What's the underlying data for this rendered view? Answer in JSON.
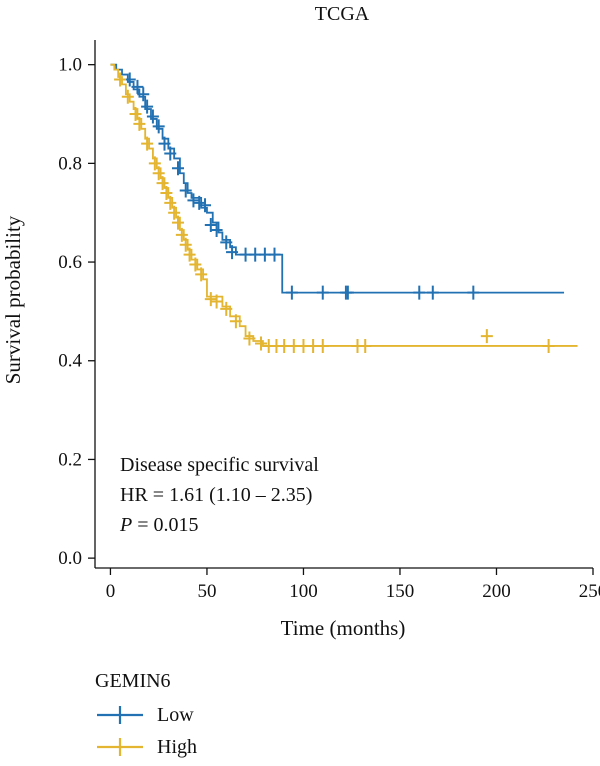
{
  "chart_data": {
    "type": "line",
    "title": "TCGA",
    "xlabel": "Time (months)",
    "ylabel": "Survival probability",
    "xlim": [
      -8,
      250
    ],
    "ylim": [
      -0.02,
      1.05
    ],
    "x_ticks": [
      0,
      50,
      100,
      150,
      200,
      250
    ],
    "y_ticks": [
      0.0,
      0.2,
      0.4,
      0.6,
      0.8,
      1.0
    ],
    "x_tick_labels": [
      "0",
      "50",
      "100",
      "150",
      "200",
      "250"
    ],
    "y_tick_labels": [
      "0.0",
      "0.2",
      "0.4",
      "0.6",
      "0.8",
      "1.0"
    ],
    "annotations": {
      "line1": "Disease specific survival",
      "line2": "HR = 1.61 (1.10 – 2.35)",
      "p_label": "P",
      "p_value": " = 0.015"
    },
    "legend": {
      "title": "GEMIN6",
      "position": "bottom-left"
    },
    "grid": false,
    "series": [
      {
        "name": "Low",
        "color": "#2271b2",
        "steps": [
          [
            0,
            1.0
          ],
          [
            3,
            0.99
          ],
          [
            6,
            0.98
          ],
          [
            9,
            0.965
          ],
          [
            12,
            0.95
          ],
          [
            15,
            0.935
          ],
          [
            18,
            0.91
          ],
          [
            21,
            0.89
          ],
          [
            24,
            0.87
          ],
          [
            27,
            0.85
          ],
          [
            30,
            0.83
          ],
          [
            33,
            0.81
          ],
          [
            36,
            0.78
          ],
          [
            38,
            0.76
          ],
          [
            40,
            0.74
          ],
          [
            42,
            0.73
          ],
          [
            47,
            0.71
          ],
          [
            50,
            0.7
          ],
          [
            53,
            0.68
          ],
          [
            56,
            0.66
          ],
          [
            58,
            0.645
          ],
          [
            62,
            0.63
          ],
          [
            65,
            0.615
          ],
          [
            89,
            0.538
          ],
          [
            235,
            0.538
          ]
        ],
        "censors": [
          [
            10,
            0.97
          ],
          [
            14,
            0.955
          ],
          [
            17,
            0.94
          ],
          [
            19,
            0.915
          ],
          [
            22,
            0.895
          ],
          [
            25,
            0.875
          ],
          [
            28,
            0.84
          ],
          [
            31,
            0.82
          ],
          [
            35,
            0.79
          ],
          [
            39,
            0.745
          ],
          [
            43,
            0.725
          ],
          [
            46,
            0.72
          ],
          [
            49,
            0.715
          ],
          [
            52,
            0.675
          ],
          [
            55,
            0.665
          ],
          [
            60,
            0.64
          ],
          [
            63,
            0.62
          ],
          [
            70,
            0.615
          ],
          [
            75,
            0.615
          ],
          [
            80,
            0.615
          ],
          [
            85,
            0.615
          ],
          [
            94,
            0.538
          ],
          [
            110,
            0.538
          ],
          [
            122,
            0.538
          ],
          [
            123,
            0.538
          ],
          [
            160,
            0.538
          ],
          [
            167,
            0.538
          ],
          [
            188,
            0.538
          ]
        ]
      },
      {
        "name": "High",
        "color": "#e3b530",
        "steps": [
          [
            0,
            1.0
          ],
          [
            2,
            0.99
          ],
          [
            4,
            0.975
          ],
          [
            6,
            0.96
          ],
          [
            8,
            0.94
          ],
          [
            10,
            0.925
          ],
          [
            12,
            0.91
          ],
          [
            14,
            0.89
          ],
          [
            16,
            0.87
          ],
          [
            18,
            0.85
          ],
          [
            20,
            0.83
          ],
          [
            22,
            0.81
          ],
          [
            24,
            0.79
          ],
          [
            26,
            0.77
          ],
          [
            28,
            0.75
          ],
          [
            30,
            0.73
          ],
          [
            32,
            0.71
          ],
          [
            34,
            0.69
          ],
          [
            36,
            0.665
          ],
          [
            38,
            0.645
          ],
          [
            40,
            0.625
          ],
          [
            42,
            0.605
          ],
          [
            45,
            0.585
          ],
          [
            48,
            0.565
          ],
          [
            50,
            0.53
          ],
          [
            58,
            0.51
          ],
          [
            62,
            0.49
          ],
          [
            67,
            0.47
          ],
          [
            70,
            0.45
          ],
          [
            74,
            0.44
          ],
          [
            79,
            0.43
          ],
          [
            242,
            0.43
          ]
        ],
        "censors": [
          [
            5,
            0.97
          ],
          [
            9,
            0.935
          ],
          [
            13,
            0.9
          ],
          [
            15,
            0.88
          ],
          [
            19,
            0.84
          ],
          [
            23,
            0.8
          ],
          [
            25,
            0.78
          ],
          [
            27,
            0.76
          ],
          [
            29,
            0.74
          ],
          [
            31,
            0.72
          ],
          [
            33,
            0.7
          ],
          [
            35,
            0.68
          ],
          [
            37,
            0.655
          ],
          [
            39,
            0.635
          ],
          [
            41,
            0.615
          ],
          [
            44,
            0.595
          ],
          [
            47,
            0.575
          ],
          [
            52,
            0.525
          ],
          [
            55,
            0.52
          ],
          [
            60,
            0.505
          ],
          [
            65,
            0.48
          ],
          [
            72,
            0.445
          ],
          [
            78,
            0.435
          ],
          [
            82,
            0.43
          ],
          [
            86,
            0.43
          ],
          [
            90,
            0.43
          ],
          [
            95,
            0.43
          ],
          [
            100,
            0.43
          ],
          [
            105,
            0.43
          ],
          [
            110,
            0.43
          ],
          [
            128,
            0.43
          ],
          [
            132,
            0.43
          ],
          [
            195,
            0.45
          ],
          [
            227,
            0.43
          ]
        ]
      }
    ]
  }
}
